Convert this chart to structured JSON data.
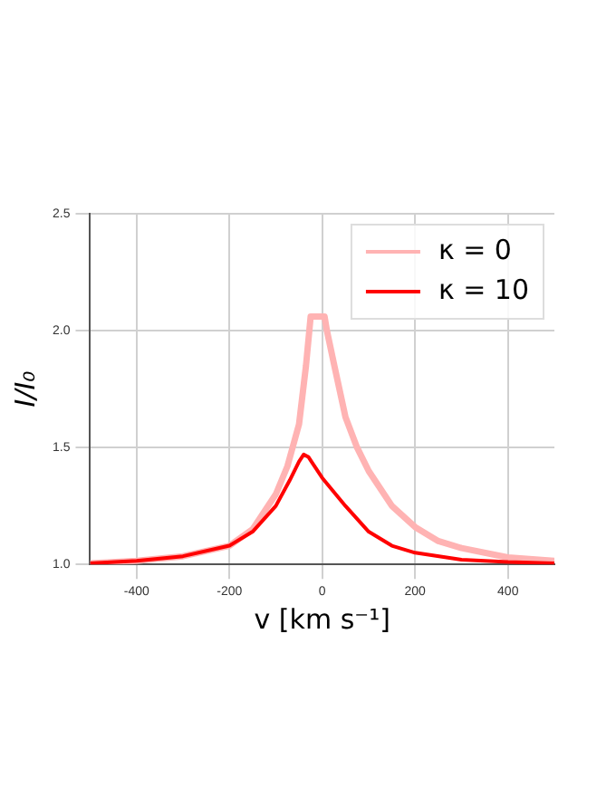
{
  "chart_data": {
    "type": "line",
    "xlabel": "v [km s⁻¹]",
    "ylabel": "I/I₀",
    "xlim": [
      -500,
      500
    ],
    "ylim": [
      1.0,
      2.5
    ],
    "xticks": [
      -400,
      -200,
      0,
      200,
      400
    ],
    "yticks": [
      {
        "value": 1,
        "label": "1.0"
      },
      {
        "value": 1.5,
        "label": "1.5"
      },
      {
        "value": 2,
        "label": "2.0"
      },
      {
        "value": 2.5,
        "label": "2.5"
      }
    ],
    "grid": true,
    "legend": "top right",
    "marker": "none",
    "line_style": "solid",
    "series": [
      {
        "name": "κ = 0",
        "color": "#ffb3b3",
        "x": [
          -500,
          -400,
          -300,
          -200,
          -150,
          -100,
          -75,
          -50,
          -35,
          -25,
          5,
          10,
          25,
          50,
          75,
          100,
          150,
          200,
          250,
          300,
          400,
          500
        ],
        "values": [
          1.005,
          1.015,
          1.035,
          1.08,
          1.15,
          1.3,
          1.42,
          1.6,
          1.85,
          2.06,
          2.06,
          2.0,
          1.86,
          1.63,
          1.5,
          1.4,
          1.25,
          1.16,
          1.1,
          1.07,
          1.03,
          1.015
        ]
      },
      {
        "name": "κ = 10",
        "color": "#ff0000",
        "x": [
          -500,
          -400,
          -300,
          -200,
          -150,
          -100,
          -70,
          -50,
          -40,
          -30,
          0,
          50,
          100,
          150,
          200,
          300,
          400,
          500
        ],
        "values": [
          1.005,
          1.015,
          1.035,
          1.08,
          1.14,
          1.25,
          1.36,
          1.44,
          1.47,
          1.46,
          1.37,
          1.25,
          1.14,
          1.08,
          1.05,
          1.02,
          1.01,
          1.005
        ]
      }
    ]
  }
}
